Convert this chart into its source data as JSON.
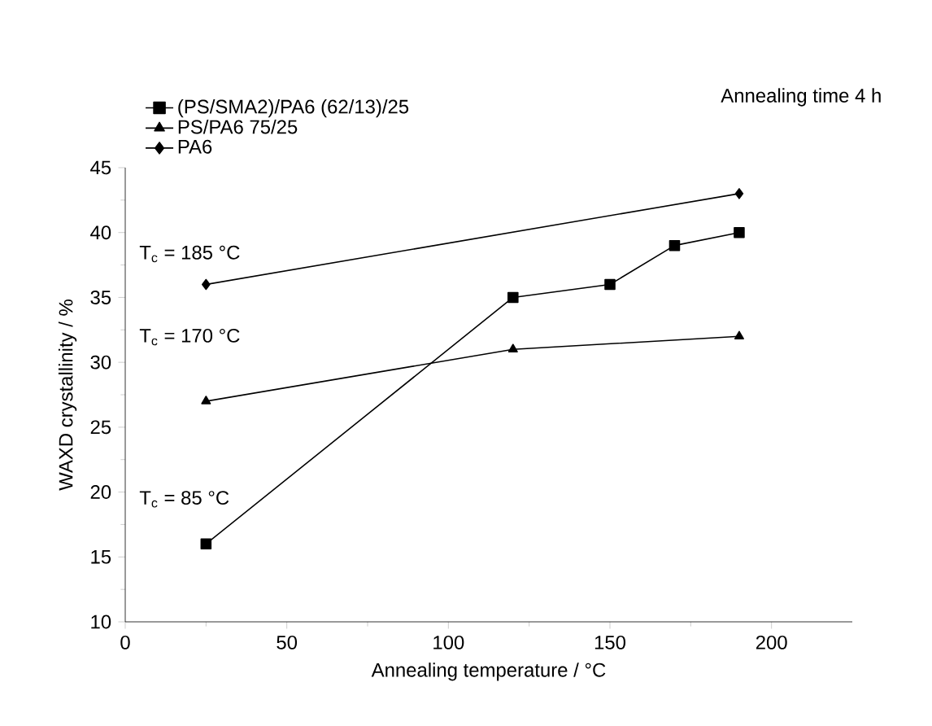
{
  "chart_data": {
    "type": "line",
    "xlabel": "Annealing temperature / °C",
    "ylabel": "WAXD crystallinity / %",
    "xlim": [
      0,
      225
    ],
    "xticks": [
      0,
      50,
      100,
      150,
      200
    ],
    "ylim": [
      10,
      45
    ],
    "yticks": [
      10,
      15,
      20,
      25,
      30,
      35,
      40,
      45
    ],
    "legend": "top left",
    "grid": false,
    "line_style": "solid",
    "series": [
      {
        "name": "(PS/SMA2)/PA6 (62/13)/25",
        "color": "#000000",
        "marker": "square",
        "x": [
          25,
          120,
          150,
          170,
          190
        ],
        "values": [
          16,
          35,
          36,
          39,
          40
        ]
      },
      {
        "name": "PS/PA6 75/25",
        "color": "#000000",
        "marker": "triangle",
        "x": [
          25,
          120,
          190
        ],
        "values": [
          27,
          31,
          32
        ]
      },
      {
        "name": "PA6",
        "color": "#000000",
        "marker": "diamond",
        "x": [
          25,
          190
        ],
        "values": [
          36,
          43
        ]
      }
    ],
    "annotations": [
      "T$_{c}$ = 185 °C",
      "T$_{c}$ = 170 °C",
      "T$_{c}$ = 85 °C",
      "Annealing time 4 h"
    ]
  }
}
